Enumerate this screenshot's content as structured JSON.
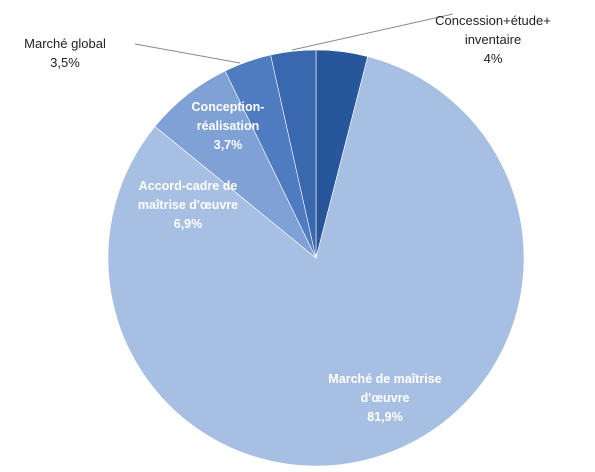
{
  "chart_data": {
    "type": "pie",
    "slices": [
      {
        "name": "Concession+étude+ inventaire",
        "label_lines": [
          "Concession+étude+",
          "inventaire"
        ],
        "value_label": "4%",
        "value": 4.0,
        "color": "#27569a",
        "label_position": "outside"
      },
      {
        "name": "Marché de maîtrise d'œuvre",
        "label_lines": [
          "Marché de maîtrise",
          "d'œuvre"
        ],
        "value_label": "81,9%",
        "value": 81.9,
        "color": "#a7bfe2",
        "label_position": "inside"
      },
      {
        "name": "Accord-cadre de maîtrise d'œuvre",
        "label_lines": [
          "Accord-cadre de",
          "maîtrise d'œuvre"
        ],
        "value_label": "6,9%",
        "value": 6.9,
        "color": "#7fa1d6",
        "label_position": "inside"
      },
      {
        "name": "Conception-réalisation",
        "label_lines": [
          "Conception-",
          "réalisation"
        ],
        "value_label": "3,7%",
        "value": 3.7,
        "color": "#4f7cc0",
        "label_position": "inside"
      },
      {
        "name": "Marché global",
        "label_lines": [
          "Marché global"
        ],
        "value_label": "3,5%",
        "value": 3.5,
        "color": "#3a68ae",
        "label_position": "outside"
      }
    ],
    "start_angle_deg": 0,
    "direction": "clockwise",
    "legend": "none",
    "title": ""
  }
}
